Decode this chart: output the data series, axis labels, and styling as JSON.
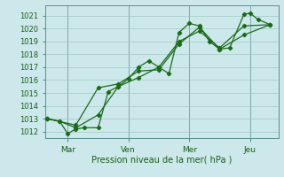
{
  "bg_color": "#cce8ea",
  "grid_color": "#9bbfbf",
  "line_color": "#1a6b1a",
  "marker_color": "#1a6b1a",
  "xlabel": "Pression niveau de la mer( hPa )",
  "ylim": [
    1011.5,
    1021.8
  ],
  "yticks": [
    1012,
    1013,
    1014,
    1015,
    1016,
    1017,
    1018,
    1019,
    1020,
    1021
  ],
  "xtick_labels": [
    "Mar",
    "Ven",
    "Mer",
    "Jeu"
  ],
  "xtick_positions": [
    1.0,
    4.0,
    7.0,
    10.0
  ],
  "xlim": [
    -0.1,
    11.4
  ],
  "series1": [
    [
      0.0,
      1013.0
    ],
    [
      0.6,
      1012.8
    ],
    [
      1.0,
      1011.85
    ],
    [
      1.4,
      1012.2
    ],
    [
      1.8,
      1012.3
    ],
    [
      2.5,
      1012.3
    ],
    [
      3.0,
      1015.1
    ],
    [
      3.5,
      1015.5
    ],
    [
      4.0,
      1016.1
    ],
    [
      4.5,
      1017.0
    ],
    [
      5.0,
      1017.5
    ],
    [
      5.5,
      1017.0
    ],
    [
      6.0,
      1016.5
    ],
    [
      6.5,
      1019.7
    ],
    [
      7.0,
      1020.4
    ],
    [
      7.5,
      1020.2
    ],
    [
      8.0,
      1019.0
    ],
    [
      8.5,
      1018.4
    ],
    [
      9.0,
      1018.5
    ],
    [
      9.7,
      1021.1
    ],
    [
      10.0,
      1021.2
    ],
    [
      10.4,
      1020.7
    ],
    [
      11.0,
      1020.3
    ]
  ],
  "series2": [
    [
      0.0,
      1013.0
    ],
    [
      0.6,
      1012.8
    ],
    [
      1.4,
      1012.3
    ],
    [
      2.5,
      1013.3
    ],
    [
      3.5,
      1015.5
    ],
    [
      4.5,
      1016.2
    ],
    [
      5.5,
      1017.0
    ],
    [
      6.5,
      1019.0
    ],
    [
      7.5,
      1019.8
    ],
    [
      8.5,
      1018.5
    ],
    [
      9.7,
      1020.2
    ],
    [
      11.0,
      1020.3
    ]
  ],
  "series3": [
    [
      0.0,
      1013.0
    ],
    [
      1.4,
      1012.5
    ],
    [
      2.5,
      1015.4
    ],
    [
      3.5,
      1015.7
    ],
    [
      4.5,
      1016.7
    ],
    [
      5.5,
      1016.8
    ],
    [
      6.5,
      1018.8
    ],
    [
      7.5,
      1020.1
    ],
    [
      8.5,
      1018.4
    ],
    [
      9.7,
      1019.5
    ],
    [
      11.0,
      1020.3
    ]
  ]
}
